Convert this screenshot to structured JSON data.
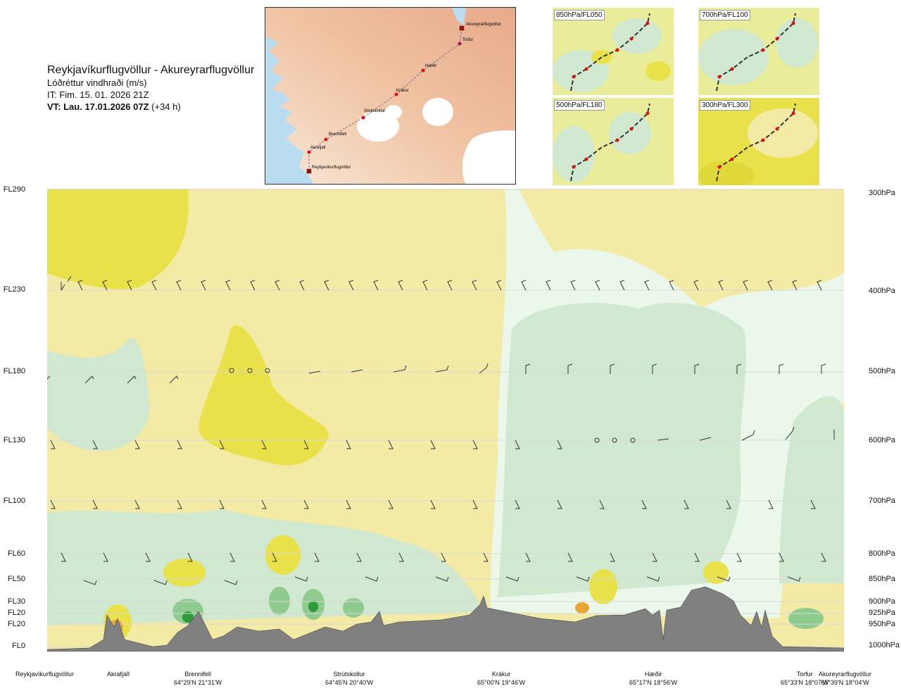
{
  "title": {
    "route": "Reykjavíkurflugvöllur - Akureyrarflugvöllur",
    "quantity": "Lóðréttur vindhraði (m/s)",
    "it": "IT: Fim. 15. 01. 2026 21Z",
    "vt_bold": "VT: Lau. 17.01.2026 07Z",
    "vt_rest": " (+34 h)"
  },
  "map": {
    "places": [
      {
        "name": "Akureyrarflugvöllur",
        "kind": "airport"
      },
      {
        "name": "Torfur",
        "kind": "point"
      },
      {
        "name": "Hæðir",
        "kind": "point"
      },
      {
        "name": "Krákur",
        "kind": "point"
      },
      {
        "name": "Strútskollur",
        "kind": "point"
      },
      {
        "name": "Brennifell",
        "kind": "point"
      },
      {
        "name": "Akrafjall",
        "kind": "point"
      },
      {
        "name": "Reykjavíkurflugvöllur",
        "kind": "airport"
      }
    ]
  },
  "thumbnails": [
    {
      "label": "850hPa/FL050"
    },
    {
      "label": "700hPa/FL100"
    },
    {
      "label": "500hPa/FL180"
    },
    {
      "label": "300hPa/FL300"
    }
  ],
  "levels": [
    {
      "fl": "FL290",
      "hpa": "300hPa"
    },
    {
      "fl": "FL230",
      "hpa": "400hPa"
    },
    {
      "fl": "FL180",
      "hpa": "500hPa"
    },
    {
      "fl": "FL130",
      "hpa": "600hPa"
    },
    {
      "fl": "FL100",
      "hpa": "700hPa"
    },
    {
      "fl": "FL60",
      "hpa": "800hPa"
    },
    {
      "fl": "FL50",
      "hpa": "850hPa"
    },
    {
      "fl": "FL30",
      "hpa": "900hPa"
    },
    {
      "fl": "FL20",
      "hpa": "925hPa"
    },
    {
      "fl": "FL20",
      "hpa": "950hPa"
    },
    {
      "fl": "FL0",
      "hpa": "1000hPa"
    }
  ],
  "locations": [
    {
      "name": "Reykjavíkurflugvöllur",
      "coord": ""
    },
    {
      "name": "Akrafjall",
      "coord": ""
    },
    {
      "name": "Brennifell",
      "coord": "64°29'N 21°31'W"
    },
    {
      "name": "Strútskollur",
      "coord": "64°45'N 20°40'W"
    },
    {
      "name": "Krákur",
      "coord": "65°00'N 19°46'W"
    },
    {
      "name": "Hæðir",
      "coord": "65°17'N 18°56'W"
    },
    {
      "name": "Torfur",
      "coord": "65°33'N 18°07'W"
    },
    {
      "name": "Akureyrarflugvöllur",
      "coord": "65°39'N 18°04'W"
    }
  ],
  "colors": {
    "sea": "#b9dcef",
    "land_low": "#f6e2cf",
    "land_high": "#e7a98a",
    "ice": "#ffffff",
    "route_line": "#7a6d8f",
    "point": "#e01010",
    "terrain": "#808080",
    "up_weak": "#f3eaa6",
    "up_moderate": "#e8e14a",
    "up_strong": "#e8a535",
    "down_faint": "#eaf7ea",
    "down_weak": "#cfe8cf",
    "down_moderate": "#8fcb8f",
    "down_strong": "#2e9a3a",
    "thumb_bg": "#e9ed9a"
  }
}
